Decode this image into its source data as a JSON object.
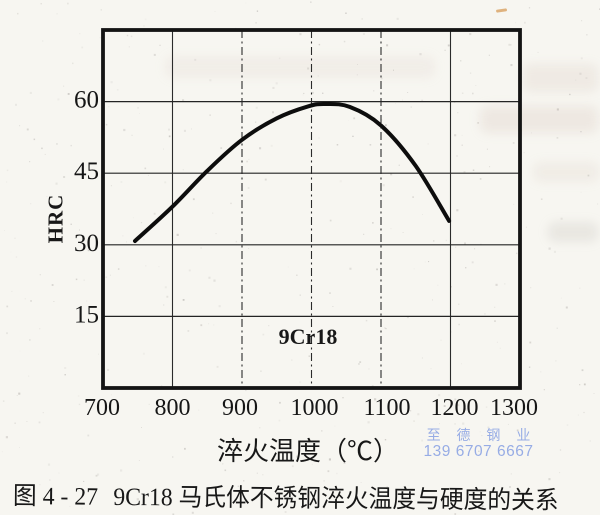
{
  "caption": {
    "figure_number": "图 4 - 27",
    "title": "9Cr18 马氏体不锈钢淬火温度与硬度的关系"
  },
  "watermark": {
    "company": "至 德 钢 业",
    "phone": "139 6707 6667",
    "color": "#8da5e4"
  },
  "chart_data": {
    "type": "line",
    "title": "",
    "xlabel": "淬火温度（℃）",
    "ylabel": "HRC",
    "xlim": [
      700,
      1300
    ],
    "ylim": [
      0,
      75
    ],
    "x_ticks": [
      700,
      800,
      900,
      1000,
      1100,
      1200,
      1300
    ],
    "y_ticks": [
      15,
      30,
      45,
      60
    ],
    "grid": true,
    "legend": false,
    "annotation": "9Cr18",
    "series": [
      {
        "name": "9Cr18",
        "points": [
          [
            746,
            30.8
          ],
          [
            800,
            38
          ],
          [
            850,
            45.5
          ],
          [
            900,
            52
          ],
          [
            950,
            56.5
          ],
          [
            995,
            59
          ],
          [
            1020,
            59.5
          ],
          [
            1055,
            58.9
          ],
          [
            1100,
            55
          ],
          [
            1150,
            46.5
          ],
          [
            1198,
            35
          ]
        ]
      }
    ]
  }
}
